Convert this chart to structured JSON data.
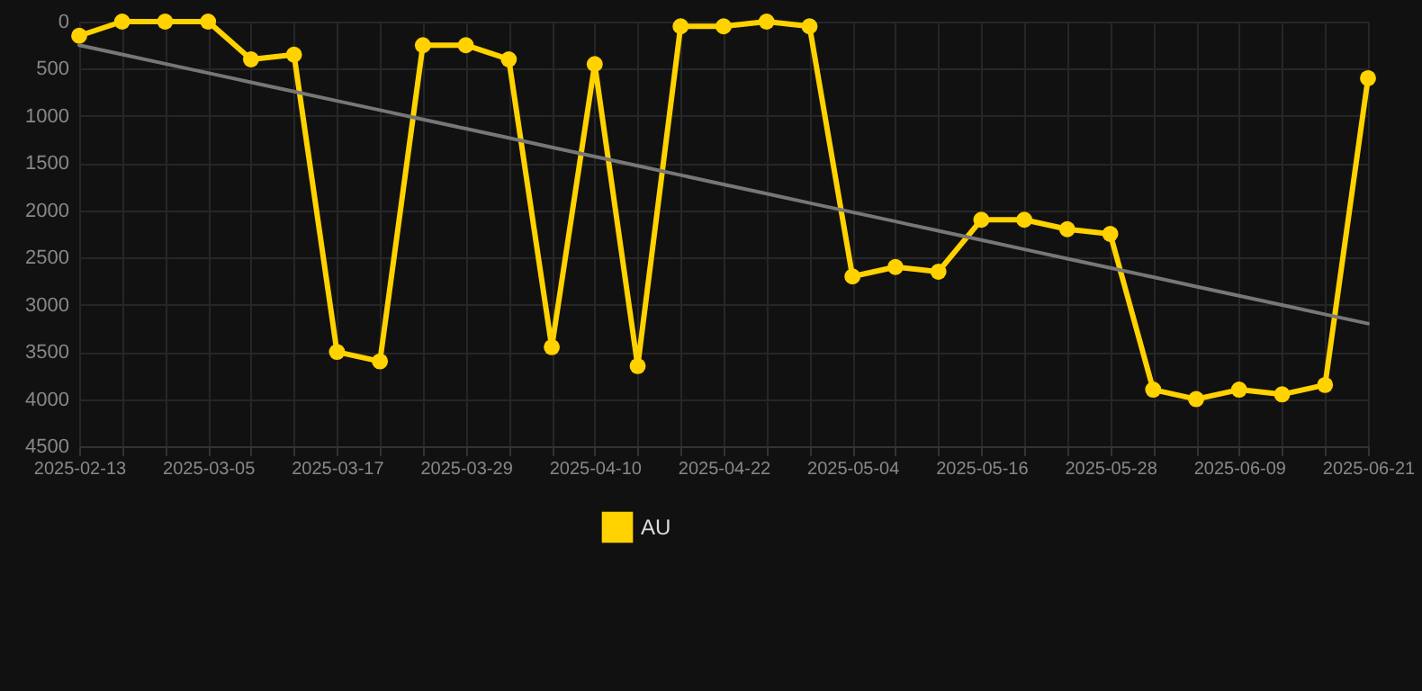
{
  "chart_data": {
    "type": "line",
    "categories": [
      "2025-02-13",
      null,
      null,
      "2025-03-05",
      null,
      null,
      "2025-03-17",
      null,
      null,
      "2025-03-29",
      null,
      null,
      "2025-04-10",
      null,
      null,
      "2025-04-22",
      null,
      null,
      "2025-05-04",
      null,
      null,
      "2025-05-16",
      null,
      null,
      "2025-05-28",
      null,
      null,
      "2025-06-09",
      null,
      null,
      "2025-06-21"
    ],
    "series": [
      {
        "name": "AU",
        "color": "#ffd200",
        "values": [
          150,
          0,
          0,
          0,
          400,
          350,
          3500,
          3600,
          250,
          250,
          400,
          3450,
          450,
          3650,
          50,
          50,
          0,
          50,
          2700,
          2600,
          2650,
          2100,
          2100,
          2200,
          2250,
          3900,
          4000,
          3900,
          3950,
          3850,
          600
        ]
      },
      {
        "type": "line",
        "color": "#777777",
        "marker": "none",
        "values": [
          250,
          348,
          447,
          545,
          643,
          742,
          840,
          938,
          1037,
          1135,
          1233,
          1332,
          1430,
          1528,
          1627,
          1725,
          1823,
          1922,
          2020,
          2118,
          2217,
          2315,
          2413,
          2512,
          2610,
          2708,
          2807,
          2905,
          3003,
          3102,
          3200
        ]
      }
    ],
    "ylim": [
      4500,
      0
    ],
    "yticks": [
      0,
      500,
      1000,
      1500,
      2000,
      2500,
      3000,
      3500,
      4000,
      4500
    ],
    "grid": true,
    "legend": "bottom",
    "marker": "circle"
  }
}
